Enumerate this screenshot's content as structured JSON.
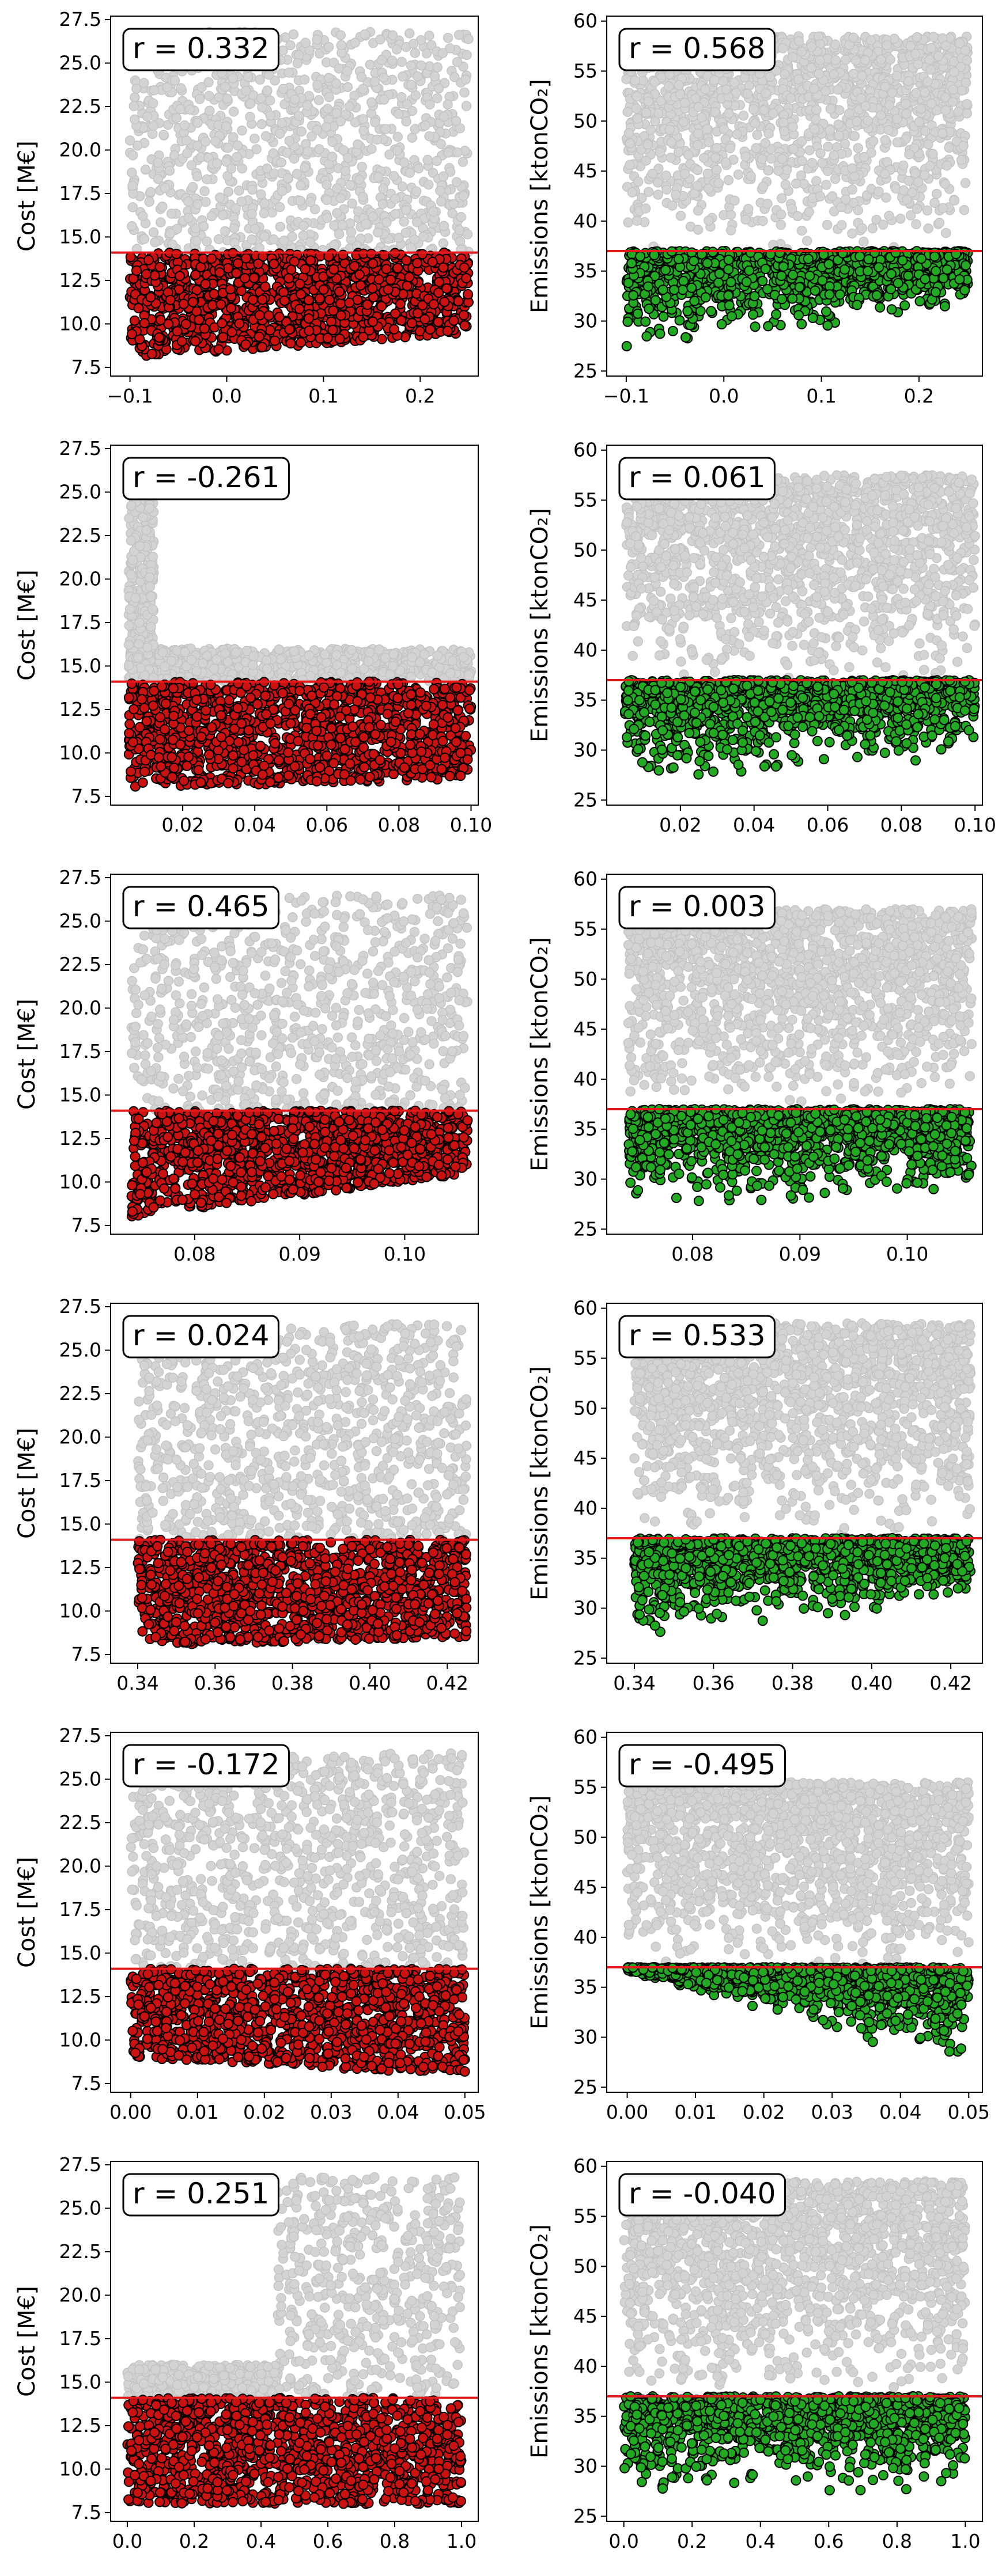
{
  "colors": {
    "background_points": "#d3d3d3",
    "cost_points": "#cc1111",
    "emission_points": "#22aa22",
    "point_edge": "#000000",
    "threshold_line": "#e31a1c"
  },
  "chart_data": [
    {
      "type": "scatter",
      "ylabel": "Cost [M€]",
      "annotation": "r = 0.332",
      "xlim": [
        -0.12,
        0.26
      ],
      "ylim": [
        7,
        27.7
      ],
      "xticks": [
        -0.1,
        0.0,
        0.1,
        0.2
      ],
      "xtick_labels": [
        "−0.1",
        "0.0",
        "0.1",
        "0.2"
      ],
      "yticks": [
        7.5,
        10,
        12.5,
        15,
        17.5,
        20,
        22.5,
        25,
        27.5
      ],
      "ytick_labels": [
        "7.5",
        "10.0",
        "12.5",
        "15.0",
        "17.5",
        "20.0",
        "22.5",
        "25.0",
        "27.5"
      ],
      "threshold": 14.1,
      "x_range": [
        -0.1,
        0.25
      ],
      "y_floor": [
        8.0,
        10.0
      ],
      "y_ceiling": 26.8,
      "hi_density": 0.6,
      "sel_floor": [
        8.0,
        9.5
      ],
      "highlight": "cost"
    },
    {
      "type": "scatter",
      "ylabel": "Emissions [ktonCO₂]",
      "annotation": "r = 0.568",
      "xlim": [
        -0.12,
        0.265
      ],
      "ylim": [
        24.5,
        60.5
      ],
      "xticks": [
        -0.1,
        0.0,
        0.1,
        0.2
      ],
      "xtick_labels": [
        "−0.1",
        "0.0",
        "0.1",
        "0.2"
      ],
      "yticks": [
        25,
        30,
        35,
        40,
        45,
        50,
        55,
        60
      ],
      "ytick_labels": [
        "25",
        "30",
        "35",
        "40",
        "45",
        "50",
        "55",
        "60"
      ],
      "threshold": 37.0,
      "x_range": [
        -0.1,
        0.25
      ],
      "y_floor": [
        25.5,
        30.0
      ],
      "y_ceiling": 58.5,
      "hi_density": 1.0,
      "sel_floor": [
        25.5,
        31.0
      ],
      "highlight": "emissions"
    },
    {
      "type": "scatter",
      "ylabel": "Cost [M€]",
      "annotation": "r = -0.261",
      "xlim": [
        0.0,
        0.102
      ],
      "ylim": [
        7,
        27.7
      ],
      "xticks": [
        0.02,
        0.04,
        0.06,
        0.08,
        0.1
      ],
      "xtick_labels": [
        "0.02",
        "0.04",
        "0.06",
        "0.08",
        "0.10"
      ],
      "yticks": [
        7.5,
        10,
        12.5,
        15,
        17.5,
        20,
        22.5,
        25,
        27.5
      ],
      "ytick_labels": [
        "7.5",
        "10.0",
        "12.5",
        "15.0",
        "17.5",
        "20.0",
        "22.5",
        "25.0",
        "27.5"
      ],
      "threshold": 14.1,
      "x_range": [
        0.005,
        0.1
      ],
      "y_floor": [
        8.0,
        8.0
      ],
      "y_ceiling": 16.0,
      "hi_density": 0.3,
      "sel_floor": [
        8.0,
        8.5
      ],
      "highlight": "cost",
      "spike": {
        "x": [
          0.005,
          0.012
        ],
        "y": [
          14.0,
          24.5
        ]
      }
    },
    {
      "type": "scatter",
      "ylabel": "Emissions [ktonCO₂]",
      "annotation": "r = 0.061",
      "xlim": [
        0.0,
        0.102
      ],
      "ylim": [
        24.5,
        60.5
      ],
      "xticks": [
        0.02,
        0.04,
        0.06,
        0.08,
        0.1
      ],
      "xtick_labels": [
        "0.02",
        "0.04",
        "0.06",
        "0.08",
        "0.10"
      ],
      "yticks": [
        25,
        30,
        35,
        40,
        45,
        50,
        55,
        60
      ],
      "ytick_labels": [
        "25",
        "30",
        "35",
        "40",
        "45",
        "50",
        "55",
        "60"
      ],
      "threshold": 37.0,
      "x_range": [
        0.005,
        0.1
      ],
      "y_floor": [
        25.5,
        27.0
      ],
      "y_ceiling": 57.5,
      "hi_density": 1.0,
      "sel_floor": [
        25.5,
        28.5
      ],
      "highlight": "emissions"
    },
    {
      "type": "scatter",
      "ylabel": "Cost [M€]",
      "annotation": "r = 0.465",
      "xlim": [
        0.072,
        0.107
      ],
      "ylim": [
        7,
        27.7
      ],
      "xticks": [
        0.08,
        0.09,
        0.1
      ],
      "xtick_labels": [
        "0.08",
        "0.09",
        "0.10"
      ],
      "yticks": [
        7.5,
        10,
        12.5,
        15,
        17.5,
        20,
        22.5,
        25,
        27.5
      ],
      "ytick_labels": [
        "7.5",
        "10.0",
        "12.5",
        "15.0",
        "17.5",
        "20.0",
        "22.5",
        "25.0",
        "27.5"
      ],
      "threshold": 14.1,
      "x_range": [
        0.074,
        0.106
      ],
      "y_floor": [
        8.0,
        10.5
      ],
      "y_ceiling": 26.5,
      "hi_density": 0.45,
      "sel_floor": [
        8.0,
        10.5
      ],
      "highlight": "cost"
    },
    {
      "type": "scatter",
      "ylabel": "Emissions [ktonCO₂]",
      "annotation": "r = 0.003",
      "xlim": [
        0.072,
        0.107
      ],
      "ylim": [
        24.5,
        60.5
      ],
      "xticks": [
        0.08,
        0.09,
        0.1
      ],
      "xtick_labels": [
        "0.08",
        "0.09",
        "0.10"
      ],
      "yticks": [
        25,
        30,
        35,
        40,
        45,
        50,
        55,
        60
      ],
      "ytick_labels": [
        "25",
        "30",
        "35",
        "40",
        "45",
        "50",
        "55",
        "60"
      ],
      "threshold": 37.0,
      "x_range": [
        0.074,
        0.106
      ],
      "y_floor": [
        26.0,
        26.0
      ],
      "y_ceiling": 57.0,
      "hi_density": 1.0,
      "sel_floor": [
        26.0,
        27.5
      ],
      "highlight": "emissions"
    },
    {
      "type": "scatter",
      "ylabel": "Cost [M€]",
      "annotation": "r = 0.024",
      "xlim": [
        0.333,
        0.428
      ],
      "ylim": [
        7,
        27.7
      ],
      "xticks": [
        0.34,
        0.36,
        0.38,
        0.4,
        0.42
      ],
      "xtick_labels": [
        "0.34",
        "0.36",
        "0.38",
        "0.40",
        "0.42"
      ],
      "yticks": [
        7.5,
        10,
        12.5,
        15,
        17.5,
        20,
        22.5,
        25,
        27.5
      ],
      "ytick_labels": [
        "7.5",
        "10.0",
        "12.5",
        "15.0",
        "17.5",
        "20.0",
        "22.5",
        "25.0",
        "27.5"
      ],
      "threshold": 14.1,
      "x_range": [
        0.34,
        0.425
      ],
      "y_floor": [
        8.0,
        8.0
      ],
      "y_ceiling": 26.5,
      "hi_density": 0.55,
      "sel_floor": [
        8.0,
        8.5
      ],
      "highlight": "cost"
    },
    {
      "type": "scatter",
      "ylabel": "Emissions [ktonCO₂]",
      "annotation": "r = 0.533",
      "xlim": [
        0.333,
        0.428
      ],
      "ylim": [
        24.5,
        60.5
      ],
      "xticks": [
        0.34,
        0.36,
        0.38,
        0.4,
        0.42
      ],
      "xtick_labels": [
        "0.34",
        "0.36",
        "0.38",
        "0.40",
        "0.42"
      ],
      "yticks": [
        25,
        30,
        35,
        40,
        45,
        50,
        55,
        60
      ],
      "ytick_labels": [
        "25",
        "30",
        "35",
        "40",
        "45",
        "50",
        "55",
        "60"
      ],
      "threshold": 37.0,
      "x_range": [
        0.34,
        0.425
      ],
      "y_floor": [
        26.0,
        29.0
      ],
      "y_ceiling": 58.5,
      "hi_density": 1.0,
      "sel_floor": [
        26.0,
        30.0
      ],
      "highlight": "emissions"
    },
    {
      "type": "scatter",
      "ylabel": "Cost [M€]",
      "annotation": "r = -0.172",
      "xlim": [
        -0.003,
        0.052
      ],
      "ylim": [
        7,
        27.7
      ],
      "xticks": [
        0.0,
        0.01,
        0.02,
        0.03,
        0.04,
        0.05
      ],
      "xtick_labels": [
        "0.00",
        "0.01",
        "0.02",
        "0.03",
        "0.04",
        "0.05"
      ],
      "yticks": [
        7.5,
        10,
        12.5,
        15,
        17.5,
        20,
        22.5,
        25,
        27.5
      ],
      "ytick_labels": [
        "7.5",
        "10.0",
        "12.5",
        "15.0",
        "17.5",
        "20.0",
        "22.5",
        "25.0",
        "27.5"
      ],
      "threshold": 14.1,
      "x_range": [
        0.0,
        0.05
      ],
      "y_floor": [
        9.0,
        8.0
      ],
      "y_ceiling": 26.5,
      "hi_density": 0.55,
      "sel_floor": [
        9.0,
        8.0
      ],
      "highlight": "cost"
    },
    {
      "type": "scatter",
      "ylabel": "Emissions [ktonCO₂]",
      "annotation": "r = -0.495",
      "xlim": [
        -0.003,
        0.052
      ],
      "ylim": [
        24.5,
        60.5
      ],
      "xticks": [
        0.0,
        0.01,
        0.02,
        0.03,
        0.04,
        0.05
      ],
      "xtick_labels": [
        "0.00",
        "0.01",
        "0.02",
        "0.03",
        "0.04",
        "0.05"
      ],
      "yticks": [
        25,
        30,
        35,
        40,
        45,
        50,
        55,
        60
      ],
      "ytick_labels": [
        "25",
        "30",
        "35",
        "40",
        "45",
        "50",
        "55",
        "60"
      ],
      "threshold": 37.0,
      "x_range": [
        0.0,
        0.05
      ],
      "y_floor": [
        36.0,
        26.0
      ],
      "y_ceiling": 55.5,
      "hi_density": 1.0,
      "sel_floor": [
        36.5,
        26.0
      ],
      "highlight": "emissions"
    },
    {
      "type": "scatter",
      "ylabel": "Cost [M€]",
      "annotation": "r = 0.251",
      "xlim": [
        -0.05,
        1.05
      ],
      "ylim": [
        7,
        27.7
      ],
      "xticks": [
        0.0,
        0.2,
        0.4,
        0.6,
        0.8,
        1.0
      ],
      "xtick_labels": [
        "0.0",
        "0.2",
        "0.4",
        "0.6",
        "0.8",
        "1.0"
      ],
      "yticks": [
        7.5,
        10,
        12.5,
        15,
        17.5,
        20,
        22.5,
        25,
        27.5
      ],
      "ytick_labels": [
        "7.5",
        "10.0",
        "12.5",
        "15.0",
        "17.5",
        "20.0",
        "22.5",
        "25.0",
        "27.5"
      ],
      "threshold": 14.1,
      "x_range": [
        0.0,
        1.0
      ],
      "y_floor": [
        8.0,
        8.0
      ],
      "y_ceiling": 26.8,
      "hi_density": 0.5,
      "sel_floor": [
        8.0,
        8.0
      ],
      "highlight": "cost",
      "step": {
        "x": 0.45,
        "low_ceiling": 16.0
      }
    },
    {
      "type": "scatter",
      "ylabel": "Emissions [ktonCO₂]",
      "annotation": "r = -0.040",
      "xlim": [
        -0.05,
        1.05
      ],
      "ylim": [
        24.5,
        60.5
      ],
      "xticks": [
        0.0,
        0.2,
        0.4,
        0.6,
        0.8,
        1.0
      ],
      "xtick_labels": [
        "0.0",
        "0.2",
        "0.4",
        "0.6",
        "0.8",
        "1.0"
      ],
      "yticks": [
        25,
        30,
        35,
        40,
        45,
        50,
        55,
        60
      ],
      "ytick_labels": [
        "25",
        "30",
        "35",
        "40",
        "45",
        "50",
        "55",
        "60"
      ],
      "threshold": 37.0,
      "x_range": [
        0.0,
        1.0
      ],
      "y_floor": [
        26.5,
        26.5
      ],
      "y_ceiling": 58.5,
      "hi_density": 1.0,
      "sel_floor": [
        26.5,
        27.0
      ],
      "highlight": "emissions"
    }
  ]
}
